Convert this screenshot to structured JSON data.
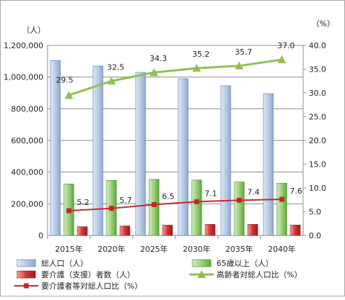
{
  "chart_data": {
    "type": "bar",
    "categories": [
      "2015年",
      "2020年",
      "2025年",
      "2030年",
      "2035年",
      "2040年"
    ],
    "left_axis_unit": "（人）",
    "right_axis_unit": "（%）",
    "left_ylim": [
      0,
      1200000
    ],
    "right_ylim": [
      0,
      40
    ],
    "left_ticks": [
      "0",
      "200,000",
      "400,000",
      "600,000",
      "800,000",
      "1,000,000",
      "1,200,000"
    ],
    "right_ticks": [
      "0.0",
      "5.0",
      "10.0",
      "15.0",
      "20.0",
      "25.0",
      "30.0",
      "35.0",
      "40.0"
    ],
    "grid": true,
    "legend_position": "bottom",
    "series": [
      {
        "name": "総人口（人）",
        "kind": "bar",
        "axis": "left",
        "color": "#b8cce4",
        "values": [
          1105000,
          1070000,
          1030000,
          990000,
          945000,
          895000
        ]
      },
      {
        "name": "65歳以上（人）",
        "kind": "bar",
        "axis": "left",
        "color": "#9bd07c",
        "values": [
          325000,
          348000,
          354000,
          350000,
          338000,
          330000
        ]
      },
      {
        "name": "要介護（支援）者数（人）",
        "kind": "bar",
        "axis": "left",
        "color": "#d73030",
        "values": [
          55000,
          60000,
          65000,
          70000,
          70000,
          66000
        ]
      },
      {
        "name": "高齢者対総人口比（%）",
        "kind": "line",
        "axis": "right",
        "color": "#92c04f",
        "values": [
          29.5,
          32.5,
          34.3,
          35.2,
          35.7,
          37.0
        ],
        "labels": [
          "29.5",
          "32.5",
          "34.3",
          "35.2",
          "35.7",
          "37.0"
        ]
      },
      {
        "name": "要介護者等対総人口比（%）",
        "kind": "line",
        "axis": "right",
        "color": "#c0262c",
        "values": [
          5.2,
          5.7,
          6.5,
          7.1,
          7.4,
          7.6
        ],
        "labels": [
          "5.2",
          "5.7",
          "6.5",
          "7.1",
          "7.4",
          "7.6"
        ]
      }
    ]
  }
}
